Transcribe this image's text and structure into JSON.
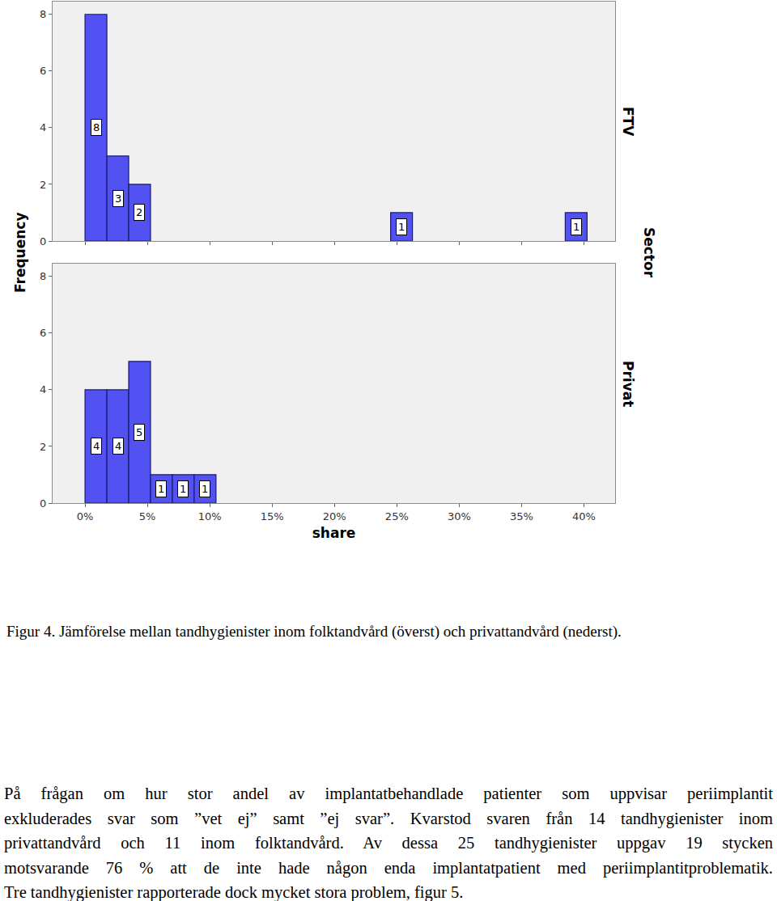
{
  "chart_data": [
    {
      "type": "histogram",
      "title": "FTV",
      "bins": [
        0,
        1.75,
        3.5,
        5.25,
        7,
        8.75,
        10.5,
        12.25,
        14,
        15.75,
        17.5,
        19.25,
        21,
        22.75,
        24.5,
        26.25,
        28,
        29.75,
        31.5,
        33.25,
        35,
        36.75,
        38.5,
        40.25
      ],
      "counts": [
        8,
        3,
        2,
        0,
        0,
        0,
        0,
        0,
        0,
        0,
        0,
        0,
        0,
        0,
        1,
        0,
        0,
        0,
        0,
        0,
        0,
        0,
        1
      ],
      "color": "#5252f2",
      "xlim": [
        -2.6,
        42.5
      ],
      "ylim": [
        0,
        8.45
      ],
      "xticks": [
        {
          "value": 0,
          "label": "0%"
        },
        {
          "value": 5,
          "label": "5%"
        },
        {
          "value": 10,
          "label": "10%"
        },
        {
          "value": 15,
          "label": "15%"
        },
        {
          "value": 20,
          "label": "20%"
        },
        {
          "value": 25,
          "label": "25%"
        },
        {
          "value": 30,
          "label": "30%"
        },
        {
          "value": 35,
          "label": "35%"
        },
        {
          "value": 40,
          "label": "40%"
        }
      ],
      "yticks": [
        0,
        2,
        4,
        6,
        8
      ],
      "grid": false,
      "data_labels": true,
      "tick_labels": "y"
    },
    {
      "type": "histogram",
      "title": "Privat",
      "bins": [
        0,
        1.75,
        3.5,
        5.25,
        7,
        8.75,
        10.5,
        12.25,
        14,
        15.75,
        17.5,
        19.25,
        21,
        22.75,
        24.5,
        26.25,
        28,
        29.75,
        31.5,
        33.25,
        35,
        36.75,
        38.5,
        40.25
      ],
      "counts": [
        4,
        4,
        5,
        1,
        1,
        1,
        0,
        0,
        0,
        0,
        0,
        0,
        0,
        0,
        0,
        0,
        0,
        0,
        0,
        0,
        0,
        0,
        0
      ],
      "color": "#5252f2",
      "xlim": [
        -2.6,
        42.5
      ],
      "ylim": [
        0,
        8.45
      ],
      "xticks": [
        {
          "value": 0,
          "label": "0%"
        },
        {
          "value": 5,
          "label": "5%"
        },
        {
          "value": 10,
          "label": "10%"
        },
        {
          "value": 15,
          "label": "15%"
        },
        {
          "value": 20,
          "label": "20%"
        },
        {
          "value": 25,
          "label": "25%"
        },
        {
          "value": 30,
          "label": "30%"
        },
        {
          "value": 35,
          "label": "35%"
        },
        {
          "value": 40,
          "label": "40%"
        }
      ],
      "yticks": [
        0,
        2,
        4,
        6,
        8
      ],
      "grid": false,
      "data_labels": true
    }
  ],
  "figure": {
    "x_label": "share",
    "y_label": "Frequency",
    "facet_label": "Sector",
    "caption": "Figur 4. Jämförelse mellan tandhygienister inom folktandvård (överst) och privattandvård (nederst)."
  },
  "text": {
    "paragraph": [
      "På frågan om hur stor andel av implantatbehandlade patienter som uppvisar periimplantit",
      "exkluderades svar som ”vet ej” samt ”ej svar”. Kvarstod svaren från 14 tandhygienister inom",
      "privattandvård och 11 inom folktandvård. Av dessa 25 tandhygienister uppgav 19 stycken",
      "motsvarande 76 % att de inte hade någon enda implantatpatient med periimplantitproblematik.",
      "Tre tandhygienister rapporterade dock mycket stora problem, figur 5."
    ]
  }
}
